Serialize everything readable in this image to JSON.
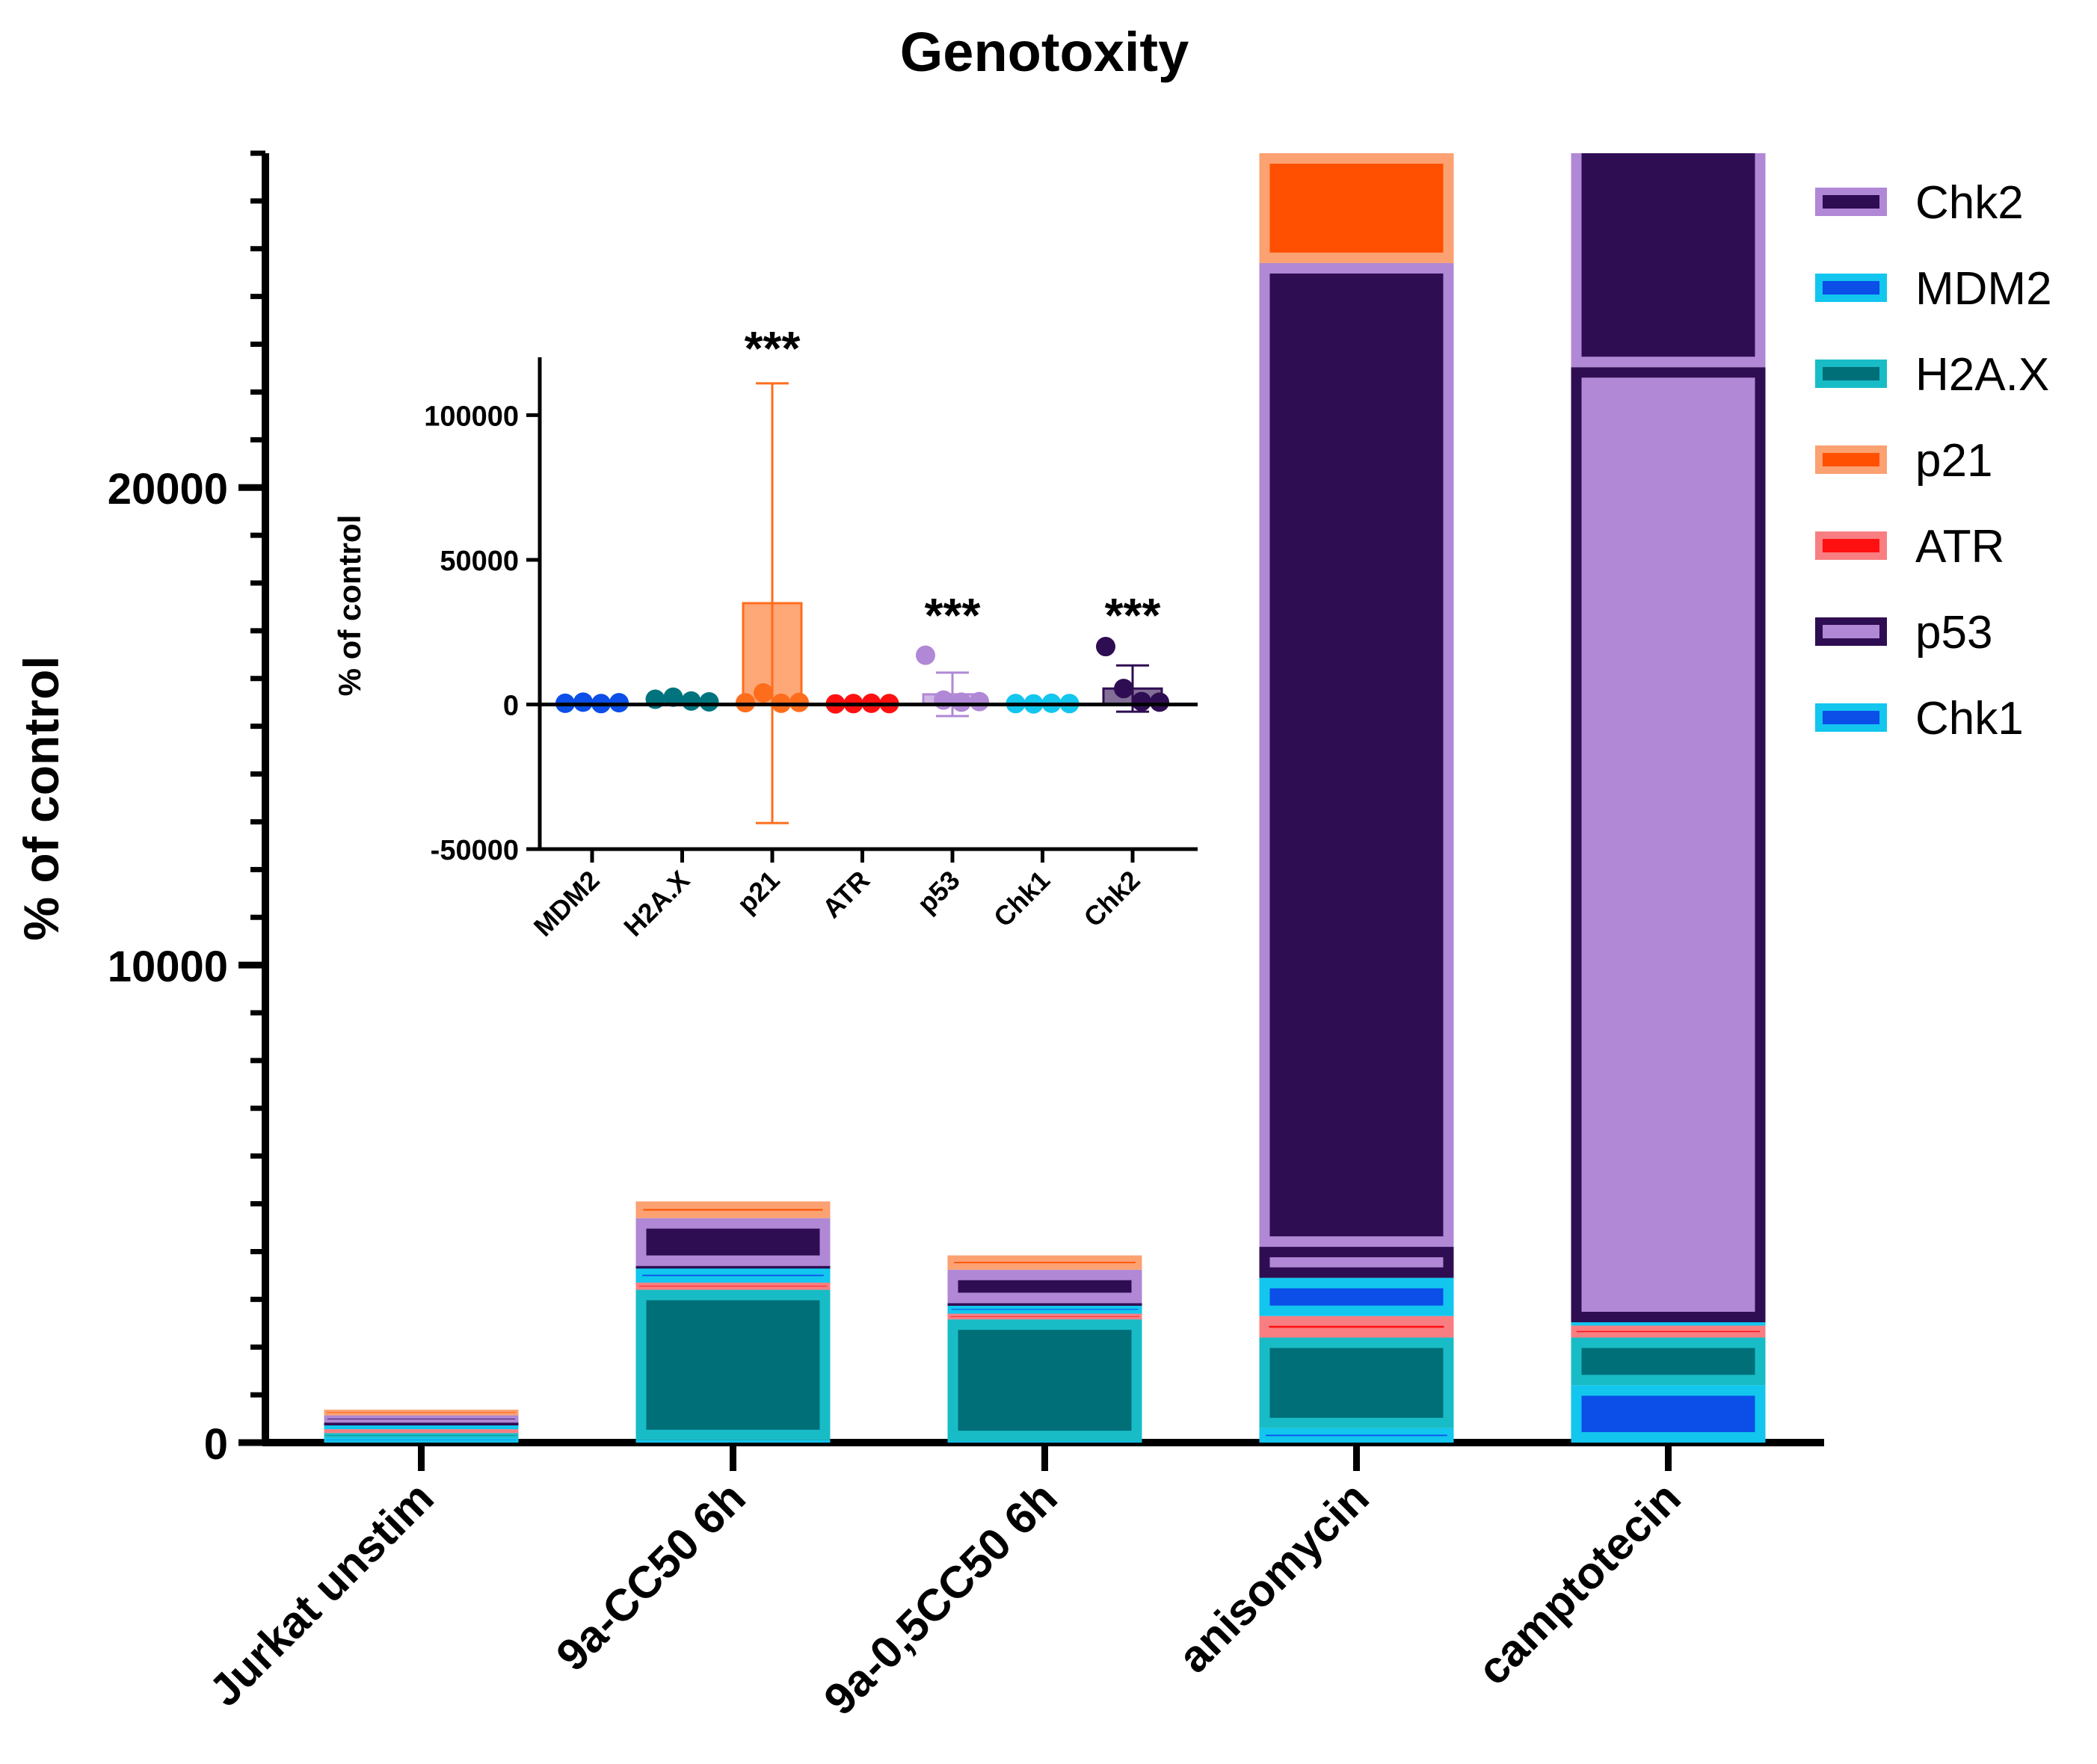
{
  "chart_data": [
    {
      "type": "bar",
      "stacked": true,
      "title": "Genotoxity",
      "ylabel": "% of control",
      "xlabel": "",
      "ylim": [
        0,
        27000
      ],
      "yticks": [
        0,
        10000,
        20000
      ],
      "categories": [
        "Jurkat unstim",
        "9a-CC50 6h",
        "9a-0,5CC50 6h",
        "anisomycin",
        "camptotecin"
      ],
      "series": [
        {
          "name": "Chk1",
          "fill": "#0b4ee8",
          "edge": "#12c6ee",
          "values": [
            100,
            50,
            30,
            300,
            1200
          ]
        },
        {
          "name": "H2A.X",
          "fill": "#006f78",
          "edge": "#18bcc6",
          "values": [
            100,
            3150,
            2550,
            1900,
            1000
          ]
        },
        {
          "name": "ATR",
          "fill": "#fe1010",
          "edge": "#f87e82",
          "values": [
            80,
            150,
            120,
            450,
            250
          ]
        },
        {
          "name": "MDM2",
          "fill": "#0b4ee8",
          "edge": "#12c6ee",
          "values": [
            80,
            300,
            180,
            800,
            70
          ]
        },
        {
          "name": "p53",
          "fill": "#b088d6",
          "edge": "#2f0d52",
          "values": [
            60,
            50,
            40,
            650,
            20000
          ]
        },
        {
          "name": "Chk2",
          "fill": "#2f0d52",
          "edge": "#b088d6",
          "values": [
            150,
            1000,
            700,
            20600,
            5700
          ]
        },
        {
          "name": "p21",
          "fill": "#fe5000",
          "edge": "#fba172",
          "values": [
            120,
            350,
            300,
            2300,
            1300
          ]
        }
      ],
      "legend": {
        "position": "right",
        "entries": [
          {
            "name": "Chk2",
            "fill": "#2f0d52",
            "edge": "#b088d6"
          },
          {
            "name": "MDM2",
            "fill": "#0b4ee8",
            "edge": "#12c6ee"
          },
          {
            "name": "H2A.X",
            "fill": "#006f78",
            "edge": "#18bcc6"
          },
          {
            "name": "p21",
            "fill": "#fe5000",
            "edge": "#fba172"
          },
          {
            "name": "ATR",
            "fill": "#fe1010",
            "edge": "#f87e82"
          },
          {
            "name": "p53",
            "fill": "#b088d6",
            "edge": "#2f0d52"
          },
          {
            "name": "Chk1",
            "fill": "#0b4ee8",
            "edge": "#12c6ee"
          }
        ]
      }
    },
    {
      "type": "bar",
      "subtype": "bar-with-points",
      "title": "",
      "ylabel": "% of control",
      "xlabel": "",
      "ylim": [
        -50000,
        120000
      ],
      "yticks": [
        -50000,
        0,
        50000,
        100000
      ],
      "categories": [
        "MDM2",
        "H2A.X",
        "p21",
        "ATR",
        "p53",
        "Chk1",
        "Chk2"
      ],
      "colors": [
        "#0b4ee8",
        "#00747e",
        "#fe6d1c",
        "#fe1010",
        "#b088d6",
        "#12c6ee",
        "#2f0d52"
      ],
      "means": [
        500,
        1500,
        35000,
        300,
        3500,
        300,
        5500
      ],
      "error": [
        300,
        800,
        76000,
        200,
        7500,
        200,
        8000
      ],
      "points": [
        [
          400,
          800,
          300,
          600
        ],
        [
          1800,
          2500,
          1200,
          900
        ],
        [
          600,
          4000,
          400,
          700
        ],
        [
          200,
          300,
          400,
          300
        ],
        [
          17000,
          1500,
          800,
          1000
        ],
        [
          300,
          200,
          400,
          300
        ],
        [
          20000,
          5500,
          1000,
          800
        ]
      ],
      "significance": [
        "",
        "",
        "***",
        "",
        "***",
        "",
        "***"
      ]
    }
  ]
}
